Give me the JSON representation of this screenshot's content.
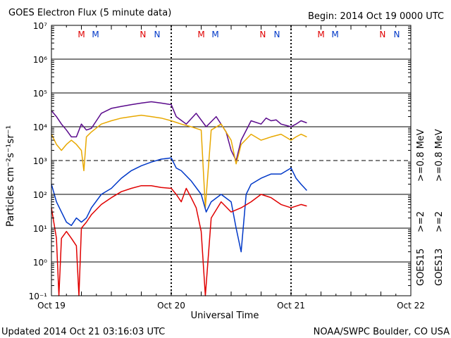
{
  "colors": {
    "red": "#e00000",
    "blue": "#0038c8",
    "purple": "#5a0a8c",
    "orange": "#e8a800",
    "black": "#000000"
  },
  "chart_data": {
    "type": "line",
    "title": "GOES Electron Flux (5 minute data)",
    "begin_label": "Begin: 2014 Oct 19 0000 UTC",
    "xlabel": "Universal Time",
    "ylabel": "Particles cm⁻²s⁻¹sr⁻¹",
    "y_scale": "log",
    "ylim": [
      0.1,
      10000000
    ],
    "y_ticks": [
      {
        "v": 0.1,
        "label": "10⁻¹"
      },
      {
        "v": 1,
        "label": "10⁰"
      },
      {
        "v": 10,
        "label": "10¹"
      },
      {
        "v": 100,
        "label": "10²"
      },
      {
        "v": 1000,
        "label": "10³"
      },
      {
        "v": 10000,
        "label": "10⁴"
      },
      {
        "v": 100000,
        "label": "10⁵"
      },
      {
        "v": 1000000,
        "label": "10⁶"
      },
      {
        "v": 10000000,
        "label": "10⁷"
      }
    ],
    "xlim": [
      "2014-10-19 00:00",
      "2014-10-22 00:00"
    ],
    "x_ticks": [
      {
        "t": "2014-10-19 00:00",
        "label": "Oct 19"
      },
      {
        "t": "2014-10-20 00:00",
        "label": "Oct 20"
      },
      {
        "t": "2014-10-21 00:00",
        "label": "Oct 21"
      },
      {
        "t": "2014-10-22 00:00",
        "label": "Oct 22"
      }
    ],
    "threshold_line": 1000,
    "grid": true,
    "mn_markers": [
      {
        "t": "2014-10-19 06:00",
        "label": "M",
        "sat": "GOES13"
      },
      {
        "t": "2014-10-19 08:50",
        "label": "M",
        "sat": "GOES15"
      },
      {
        "t": "2014-10-19 18:20",
        "label": "N",
        "sat": "GOES13"
      },
      {
        "t": "2014-10-19 21:10",
        "label": "N",
        "sat": "GOES15"
      },
      {
        "t": "2014-10-20 06:00",
        "label": "M",
        "sat": "GOES13"
      },
      {
        "t": "2014-10-20 08:50",
        "label": "M",
        "sat": "GOES15"
      },
      {
        "t": "2014-10-20 18:20",
        "label": "N",
        "sat": "GOES13"
      },
      {
        "t": "2014-10-20 21:10",
        "label": "N",
        "sat": "GOES15"
      },
      {
        "t": "2014-10-21 06:00",
        "label": "M",
        "sat": "GOES13"
      },
      {
        "t": "2014-10-21 08:50",
        "label": "M",
        "sat": "GOES15"
      },
      {
        "t": "2014-10-21 18:20",
        "label": "N",
        "sat": "GOES13"
      },
      {
        "t": "2014-10-21 21:10",
        "label": "N",
        "sat": "GOES15"
      }
    ],
    "legend": {
      "placement": "right",
      "goes15": "GOES15",
      "goes13": "GOES13",
      "entries": [
        {
          "series": "GOES15 >=0.8 MeV",
          "text": ">=0.8  MeV"
        },
        {
          "series": "GOES15 >=2 MeV",
          "text": ">=2"
        },
        {
          "series": "GOES13 >=0.8 MeV",
          "text": ">=0.8  MeV"
        },
        {
          "series": "GOES13 >=2 MeV",
          "text": ">=2"
        }
      ]
    },
    "series": [
      {
        "name": "GOES15 >=0.8 MeV",
        "t": [
          "2014-10-19 00:00",
          "2014-10-19 01:00",
          "2014-10-19 02:00",
          "2014-10-19 03:00",
          "2014-10-19 04:00",
          "2014-10-19 05:00",
          "2014-10-19 06:00",
          "2014-10-19 07:00",
          "2014-10-19 08:00",
          "2014-10-19 09:00",
          "2014-10-19 10:00",
          "2014-10-19 12:00",
          "2014-10-19 14:00",
          "2014-10-19 16:00",
          "2014-10-19 18:00",
          "2014-10-19 20:00",
          "2014-10-19 22:00",
          "2014-10-20 00:00",
          "2014-10-20 01:00",
          "2014-10-20 03:00",
          "2014-10-20 05:00",
          "2014-10-20 07:00",
          "2014-10-20 09:00",
          "2014-10-20 11:00",
          "2014-10-20 12:00",
          "2014-10-20 13:00",
          "2014-10-20 14:00",
          "2014-10-20 16:00",
          "2014-10-20 18:00",
          "2014-10-20 19:00",
          "2014-10-20 20:00",
          "2014-10-20 21:00",
          "2014-10-20 22:00",
          "2014-10-21 00:00",
          "2014-10-21 01:00",
          "2014-10-21 02:00",
          "2014-10-21 03:10"
        ],
        "values": [
          30000,
          20000,
          12000,
          8000,
          5000,
          5000,
          12000,
          8000,
          9000,
          15000,
          25000,
          35000,
          40000,
          45000,
          50000,
          55000,
          50000,
          45000,
          20000,
          12000,
          25000,
          10000,
          20000,
          7000,
          2000,
          1000,
          4000,
          15000,
          12000,
          18000,
          15000,
          16000,
          12000,
          10000,
          12000,
          15000,
          13000
        ]
      },
      {
        "name": "GOES13 >=0.8 MeV",
        "t": [
          "2014-10-19 00:00",
          "2014-10-19 01:00",
          "2014-10-19 02:00",
          "2014-10-19 03:00",
          "2014-10-19 04:00",
          "2014-10-19 05:00",
          "2014-10-19 06:00",
          "2014-10-19 06:30",
          "2014-10-19 07:00",
          "2014-10-19 08:00",
          "2014-10-19 10:00",
          "2014-10-19 12:00",
          "2014-10-19 14:00",
          "2014-10-19 16:00",
          "2014-10-19 18:00",
          "2014-10-19 20:00",
          "2014-10-19 22:00",
          "2014-10-20 00:00",
          "2014-10-20 02:00",
          "2014-10-20 04:00",
          "2014-10-20 06:00",
          "2014-10-20 06:50",
          "2014-10-20 08:00",
          "2014-10-20 10:00",
          "2014-10-20 12:00",
          "2014-10-20 13:00",
          "2014-10-20 14:00",
          "2014-10-20 16:00",
          "2014-10-20 18:00",
          "2014-10-20 20:00",
          "2014-10-20 22:00",
          "2014-10-21 00:00",
          "2014-10-21 01:00",
          "2014-10-21 02:00",
          "2014-10-21 03:10"
        ],
        "values": [
          6000,
          3000,
          2000,
          3000,
          4000,
          3000,
          2000,
          500,
          5000,
          7000,
          12000,
          15000,
          18000,
          20000,
          22000,
          20000,
          18000,
          15000,
          12000,
          10000,
          8000,
          40,
          8000,
          12000,
          4000,
          800,
          3000,
          6000,
          4000,
          5000,
          6000,
          4000,
          5000,
          6000,
          5000
        ]
      },
      {
        "name": "GOES15 >=2 MeV",
        "t": [
          "2014-10-19 00:00",
          "2014-10-19 01:00",
          "2014-10-19 02:00",
          "2014-10-19 03:00",
          "2014-10-19 04:00",
          "2014-10-19 05:00",
          "2014-10-19 06:00",
          "2014-10-19 07:00",
          "2014-10-19 08:00",
          "2014-10-19 10:00",
          "2014-10-19 12:00",
          "2014-10-19 14:00",
          "2014-10-19 16:00",
          "2014-10-19 18:00",
          "2014-10-19 20:00",
          "2014-10-19 22:00",
          "2014-10-20 00:00",
          "2014-10-20 01:00",
          "2014-10-20 02:00",
          "2014-10-20 04:00",
          "2014-10-20 06:00",
          "2014-10-20 07:00",
          "2014-10-20 08:00",
          "2014-10-20 10:00",
          "2014-10-20 12:00",
          "2014-10-20 13:00",
          "2014-10-20 14:00",
          "2014-10-20 15:00",
          "2014-10-20 16:00",
          "2014-10-20 18:00",
          "2014-10-20 20:00",
          "2014-10-20 22:00",
          "2014-10-21 00:00",
          "2014-10-21 01:00",
          "2014-10-21 02:00",
          "2014-10-21 03:10"
        ],
        "values": [
          200,
          60,
          30,
          15,
          12,
          20,
          15,
          20,
          40,
          100,
          150,
          300,
          500,
          700,
          900,
          1100,
          1200,
          600,
          500,
          250,
          100,
          30,
          60,
          100,
          60,
          10,
          2,
          100,
          200,
          300,
          400,
          400,
          600,
          300,
          200,
          130
        ]
      },
      {
        "name": "GOES13 >=2 MeV",
        "t": [
          "2014-10-19 00:00",
          "2014-10-19 01:00",
          "2014-10-19 01:30",
          "2014-10-19 02:00",
          "2014-10-19 03:00",
          "2014-10-19 04:00",
          "2014-10-19 05:00",
          "2014-10-19 05:30",
          "2014-10-19 06:00",
          "2014-10-19 07:00",
          "2014-10-19 08:00",
          "2014-10-19 10:00",
          "2014-10-19 12:00",
          "2014-10-19 14:00",
          "2014-10-19 16:00",
          "2014-10-19 18:00",
          "2014-10-19 20:00",
          "2014-10-19 22:00",
          "2014-10-20 00:00",
          "2014-10-20 01:00",
          "2014-10-20 02:00",
          "2014-10-20 03:00",
          "2014-10-20 04:00",
          "2014-10-20 05:00",
          "2014-10-20 06:00",
          "2014-10-20 06:50",
          "2014-10-20 08:00",
          "2014-10-20 10:00",
          "2014-10-20 12:00",
          "2014-10-20 14:00",
          "2014-10-20 16:00",
          "2014-10-20 18:00",
          "2014-10-20 20:00",
          "2014-10-20 22:00",
          "2014-10-21 00:00",
          "2014-10-21 02:00",
          "2014-10-21 03:10"
        ],
        "values": [
          40,
          5,
          0.1,
          5,
          8,
          5,
          3,
          0.1,
          10,
          15,
          25,
          50,
          80,
          120,
          150,
          180,
          180,
          160,
          150,
          100,
          60,
          150,
          80,
          40,
          8,
          0.1,
          20,
          60,
          30,
          40,
          60,
          100,
          80,
          50,
          40,
          50,
          45
        ]
      }
    ]
  },
  "footer": {
    "updated": "Updated 2014 Oct 21 03:16:03 UTC",
    "credit": "NOAA/SWPC Boulder, CO USA"
  }
}
